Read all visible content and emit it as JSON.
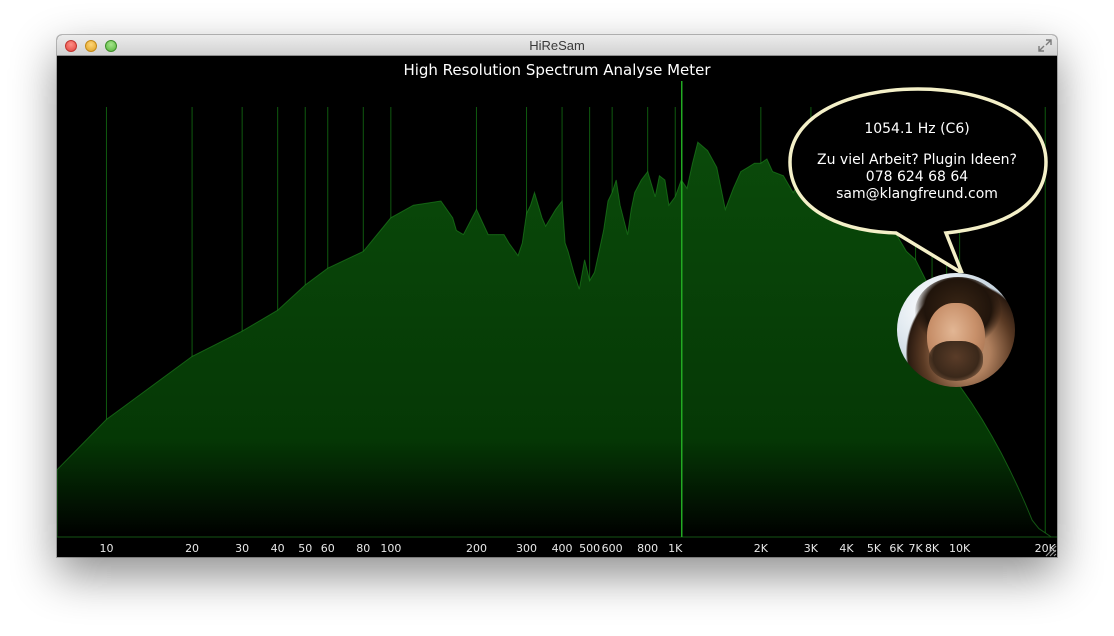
{
  "window": {
    "title": "HiReSam"
  },
  "meter": {
    "title": "High Resolution Spectrum Analyse Meter",
    "frequency_readout": "1054.1 Hz (C6)",
    "bubble_line1": "Zu viel Arbeit? Plugin Ideen?",
    "bubble_line2": "078 624 68 64",
    "bubble_line3": "sam@klangfreund.com"
  },
  "colors": {
    "background": "#000000",
    "spectrum_fill": "#0a4a0a",
    "spectrum_edge": "#1f8a1f",
    "grid_line": "#0f5a0f",
    "marker_line": "#22aa22",
    "tick_label": "#e8e8e8",
    "bubble_fill": "#000000",
    "bubble_border": "#f4f0c8"
  },
  "icons": {
    "close": "close-icon",
    "minimize": "minimize-icon",
    "zoom": "zoom-icon",
    "fullscreen": "fullscreen-icon",
    "resize": "resize-grip-icon"
  },
  "chart_data": {
    "type": "area",
    "title": "High Resolution Spectrum Analyse Meter",
    "x_scale": "log",
    "x_range_hz": [
      6.7,
      22000
    ],
    "y_range": [
      0,
      1
    ],
    "grid": true,
    "marker_frequency_hz": 1054.1,
    "tick_labels": [
      "10",
      "20",
      "30",
      "40",
      "50",
      "60",
      "80",
      "100",
      "200",
      "300",
      "400",
      "500",
      "600",
      "800",
      "1K",
      "2K",
      "3K",
      "4K",
      "5K",
      "6K",
      "7K",
      "8K",
      "10K",
      "20K"
    ],
    "tick_frequencies_hz": [
      10,
      20,
      30,
      40,
      50,
      60,
      80,
      100,
      200,
      300,
      400,
      500,
      600,
      800,
      1000,
      2000,
      3000,
      4000,
      5000,
      6000,
      7000,
      8000,
      10000,
      20000
    ],
    "series": [
      {
        "x_hz": [
          6.7,
          10,
          20,
          30,
          40,
          50,
          60,
          80,
          100,
          120,
          150,
          165,
          170,
          180,
          200,
          220,
          250,
          260,
          280,
          290,
          300,
          310,
          320,
          340,
          350,
          380,
          400,
          410,
          420,
          440,
          460,
          480,
          500,
          520,
          540,
          560,
          580,
          600,
          620,
          640,
          680,
          700,
          720,
          760,
          800,
          850,
          880,
          920,
          950,
          1000,
          1050,
          1100,
          1150,
          1200,
          1300,
          1400,
          1500,
          1600,
          1700,
          1800,
          1900,
          2000,
          2100,
          2200,
          2400,
          2600,
          2800,
          3000,
          3200,
          3400,
          3700,
          4000,
          4500,
          5000,
          5500,
          6000,
          6500,
          7000,
          7500,
          8000,
          8500,
          9000,
          9500,
          10000,
          11000,
          12000,
          13000,
          14000,
          15000,
          16000,
          17000,
          18000,
          19000,
          20000,
          21000,
          22000
        ],
        "level": [
          0.16,
          0.28,
          0.43,
          0.49,
          0.54,
          0.6,
          0.64,
          0.68,
          0.76,
          0.79,
          0.8,
          0.76,
          0.73,
          0.72,
          0.78,
          0.72,
          0.72,
          0.7,
          0.67,
          0.7,
          0.77,
          0.79,
          0.82,
          0.76,
          0.74,
          0.78,
          0.8,
          0.7,
          0.68,
          0.63,
          0.59,
          0.66,
          0.61,
          0.63,
          0.68,
          0.73,
          0.8,
          0.82,
          0.85,
          0.79,
          0.72,
          0.78,
          0.82,
          0.85,
          0.87,
          0.81,
          0.86,
          0.85,
          0.79,
          0.81,
          0.85,
          0.83,
          0.89,
          0.94,
          0.92,
          0.88,
          0.78,
          0.83,
          0.87,
          0.88,
          0.89,
          0.89,
          0.9,
          0.87,
          0.86,
          0.82,
          0.86,
          0.88,
          0.84,
          0.82,
          0.8,
          0.8,
          0.78,
          0.76,
          0.74,
          0.72,
          0.68,
          0.66,
          0.62,
          0.58,
          0.55,
          0.5,
          0.42,
          0.36,
          0.32,
          0.28,
          0.24,
          0.2,
          0.16,
          0.12,
          0.08,
          0.04,
          0.02,
          0.01,
          0.0,
          0.0
        ]
      }
    ]
  }
}
